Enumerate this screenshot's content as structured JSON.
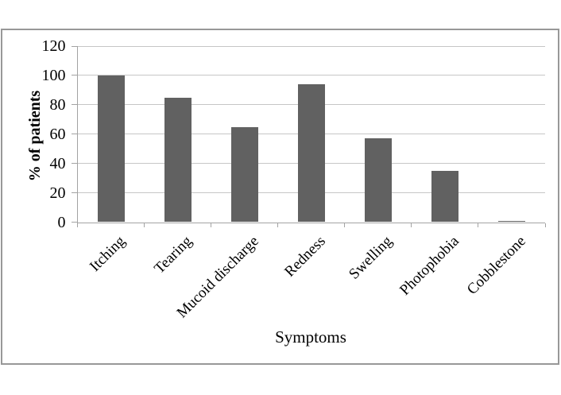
{
  "figure": {
    "background": "#ffffff",
    "frame_border_color": "#989898"
  },
  "chart_data": {
    "type": "bar",
    "title": "",
    "categories": [
      "Itching",
      "Tearing",
      "Mucoid discharge",
      "Redness",
      "Swelling",
      "Photophobia",
      "Cobblestone"
    ],
    "values": [
      100,
      85,
      65,
      94,
      57,
      35,
      1
    ],
    "xlabel": "Symptoms",
    "ylabel": "% of patients",
    "ylim": [
      0,
      120
    ],
    "yticks": [
      0,
      20,
      40,
      60,
      80,
      100,
      120
    ],
    "grid": "horizontal",
    "legend": "none",
    "bar_color": "#616161",
    "gridline_color": "#c6c6c6",
    "axis_color": "#a3a3a3",
    "text_color": "#000000"
  }
}
